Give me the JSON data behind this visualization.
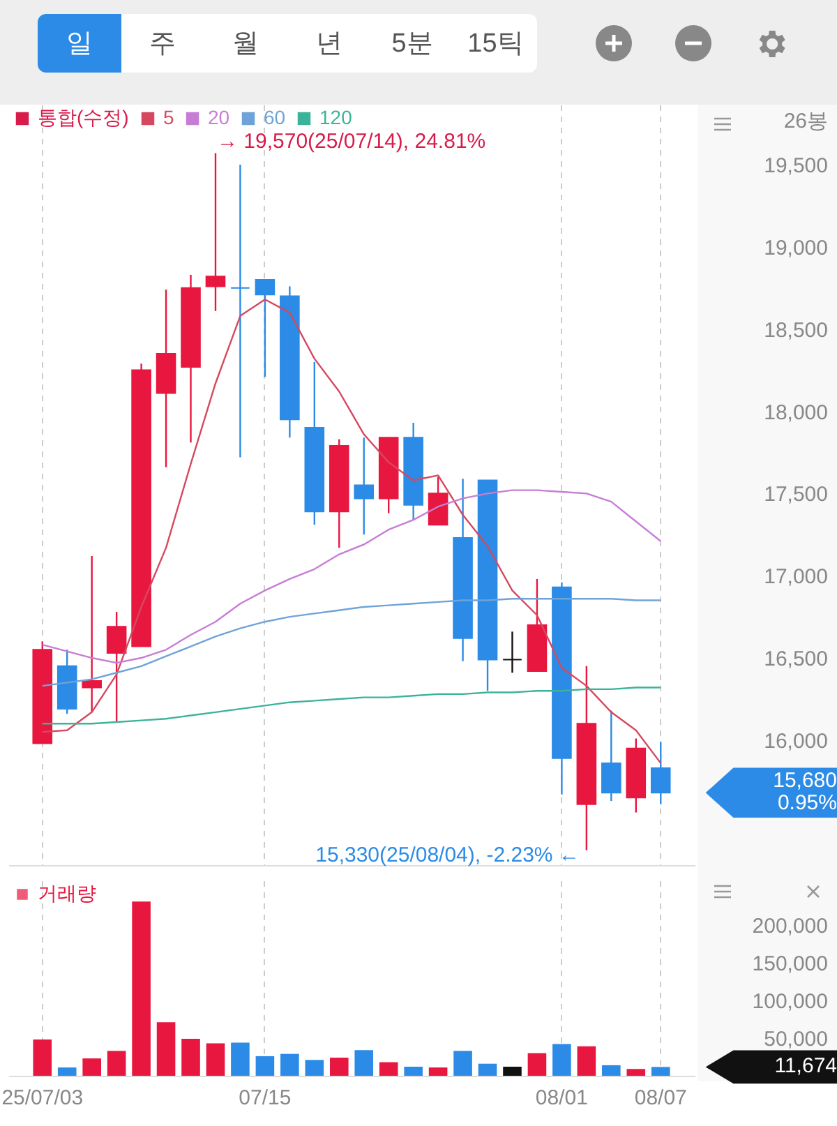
{
  "chart_data": [
    {
      "type": "candlestick",
      "categories": [
        null,
        null,
        null,
        null,
        null,
        null,
        null,
        null,
        null,
        null,
        null,
        null,
        null,
        null,
        null,
        null,
        null,
        null,
        null,
        null,
        null,
        null,
        null,
        null,
        null,
        null
      ],
      "ylim": [
        15240,
        19865
      ],
      "yticks": [
        {
          "value": 16000,
          "label": "16,000"
        },
        {
          "value": 16500,
          "label": "16,500"
        },
        {
          "value": 17000,
          "label": "17,000"
        },
        {
          "value": 17500,
          "label": "17,500"
        },
        {
          "value": 18000,
          "label": "18,000"
        },
        {
          "value": 18500,
          "label": "18,500"
        },
        {
          "value": 19000,
          "label": "19,000"
        },
        {
          "value": 19500,
          "label": "19,500"
        }
      ],
      "ylabel": "26봉",
      "grid": "x",
      "legend": "top left",
      "tick_labels": "y",
      "annotations": [
        "일",
        "주",
        "월",
        "년",
        "5분",
        "15틱",
        "→ 19,570(25/07/14), 24.81%",
        "15,330(25/08/04), -2.23% ←",
        "15,680\n0.95%"
      ],
      "series": [
        {
          "name": "통합(수정)",
          "type": "candlestick",
          "color": "#d81b4a",
          "ohlc": [
            [
              15980,
              16600,
              15980,
              16550
            ],
            [
              16450,
              16550,
              16160,
              16190
            ],
            [
              16320,
              17120,
              16170,
              16360
            ],
            [
              16530,
              16780,
              16110,
              16690
            ],
            [
              16570,
              18290,
              16570,
              18250
            ],
            [
              18110,
              18740,
              17660,
              18350
            ],
            [
              18270,
              18830,
              17810,
              18750
            ],
            [
              18760,
              19570,
              18610,
              18820
            ],
            [
              18750,
              19500,
              17720,
              18750
            ],
            [
              18800,
              18800,
              18210,
              18710
            ],
            [
              18700,
              18760,
              17840,
              17950
            ],
            [
              17900,
              18300,
              17310,
              17390
            ],
            [
              17390,
              17830,
              17170,
              17790
            ],
            [
              17550,
              17840,
              17250,
              17470
            ],
            [
              17470,
              17840,
              17380,
              17840
            ],
            [
              17840,
              17930,
              17340,
              17430
            ],
            [
              17310,
              17600,
              17310,
              17500
            ],
            [
              17230,
              17590,
              16480,
              16620
            ],
            [
              17580,
              17580,
              16300,
              16490
            ],
            [
              16490,
              16660,
              16410,
              16490
            ],
            [
              16420,
              16980,
              16420,
              16700
            ],
            [
              16930,
              16960,
              15670,
              15890
            ],
            [
              15610,
              16450,
              15330,
              16100
            ],
            [
              15860,
              16180,
              15630,
              15680
            ],
            [
              15650,
              16010,
              15560,
              15950
            ],
            [
              15830,
              15990,
              15610,
              15680
            ]
          ],
          "colors": [
            "#e8173f",
            "#2b8be6",
            "#e8173f",
            "#e8173f",
            "#e8173f",
            "#e8173f",
            "#e8173f",
            "#e8173f",
            "#2b8be6",
            "#2b8be6",
            "#2b8be6",
            "#2b8be6",
            "#e8173f",
            "#2b8be6",
            "#e8173f",
            "#2b8be6",
            "#e8173f",
            "#2b8be6",
            "#2b8be6",
            "#111111",
            "#e8173f",
            "#2b8be6",
            "#e8173f",
            "#2b8be6",
            "#e8173f",
            "#2b8be6"
          ]
        },
        {
          "name": "5",
          "type": "line",
          "color": "#d6485f",
          "values": [
            16050,
            16060,
            16170,
            16400,
            16810,
            17170,
            17680,
            18170,
            18580,
            18680,
            18600,
            18320,
            18120,
            17860,
            17690,
            17580,
            17610,
            17370,
            17180,
            16910,
            16760,
            16440,
            16330,
            16170,
            16060,
            15860
          ]
        },
        {
          "name": "20",
          "type": "line",
          "color": "#c77dd6",
          "values": [
            16580,
            16540,
            16500,
            16470,
            16500,
            16550,
            16640,
            16720,
            16830,
            16910,
            16980,
            17040,
            17130,
            17190,
            17280,
            17340,
            17420,
            17470,
            17500,
            17520,
            17520,
            17510,
            17500,
            17450,
            17330,
            17210
          ]
        },
        {
          "name": "60",
          "type": "line",
          "color": "#6fa3d7",
          "values": [
            16330,
            16350,
            16370,
            16410,
            16450,
            16510,
            16570,
            16630,
            16680,
            16720,
            16750,
            16770,
            16790,
            16810,
            16820,
            16830,
            16840,
            16850,
            16850,
            16860,
            16860,
            16860,
            16860,
            16860,
            16850,
            16850
          ]
        },
        {
          "name": "120",
          "type": "line",
          "color": "#3bb39a",
          "values": [
            16100,
            16100,
            16100,
            16110,
            16120,
            16130,
            16150,
            16170,
            16190,
            16210,
            16230,
            16240,
            16250,
            16260,
            16260,
            16270,
            16280,
            16280,
            16290,
            16290,
            16300,
            16300,
            16310,
            16310,
            16320,
            16320
          ]
        }
      ]
    },
    {
      "type": "bar",
      "categories": [
        "25/07/03",
        null,
        null,
        null,
        null,
        null,
        null,
        null,
        null,
        "07/15",
        null,
        null,
        null,
        null,
        null,
        null,
        null,
        null,
        null,
        null,
        null,
        "08/01",
        null,
        null,
        null,
        "08/07"
      ],
      "ylim": [
        0,
        259000
      ],
      "yticks": [
        {
          "value": 50000,
          "label": "50,000"
        },
        {
          "value": 100000,
          "label": "100,000"
        },
        {
          "value": 150000,
          "label": "150,000"
        },
        {
          "value": 200000,
          "label": "200,000"
        }
      ],
      "grid": "x",
      "legend": "top left",
      "annotations": [
        "11,674"
      ],
      "series": [
        {
          "name": "거래량",
          "color": "#e8173f",
          "values": [
            48000,
            11000,
            23000,
            33000,
            231000,
            71000,
            49000,
            43000,
            44000,
            26000,
            29000,
            21000,
            24000,
            34000,
            18000,
            12000,
            11000,
            33000,
            16000,
            12000,
            30000,
            42000,
            39000,
            14000,
            9000,
            11674
          ],
          "colors": [
            "#e8173f",
            "#2b8be6",
            "#e8173f",
            "#e8173f",
            "#e8173f",
            "#e8173f",
            "#e8173f",
            "#e8173f",
            "#2b8be6",
            "#2b8be6",
            "#2b8be6",
            "#2b8be6",
            "#e8173f",
            "#2b8be6",
            "#e8173f",
            "#2b8be6",
            "#e8173f",
            "#2b8be6",
            "#2b8be6",
            "#111111",
            "#e8173f",
            "#2b8be6",
            "#e8173f",
            "#2b8be6",
            "#e8173f",
            "#2b8be6"
          ]
        }
      ]
    }
  ]
}
